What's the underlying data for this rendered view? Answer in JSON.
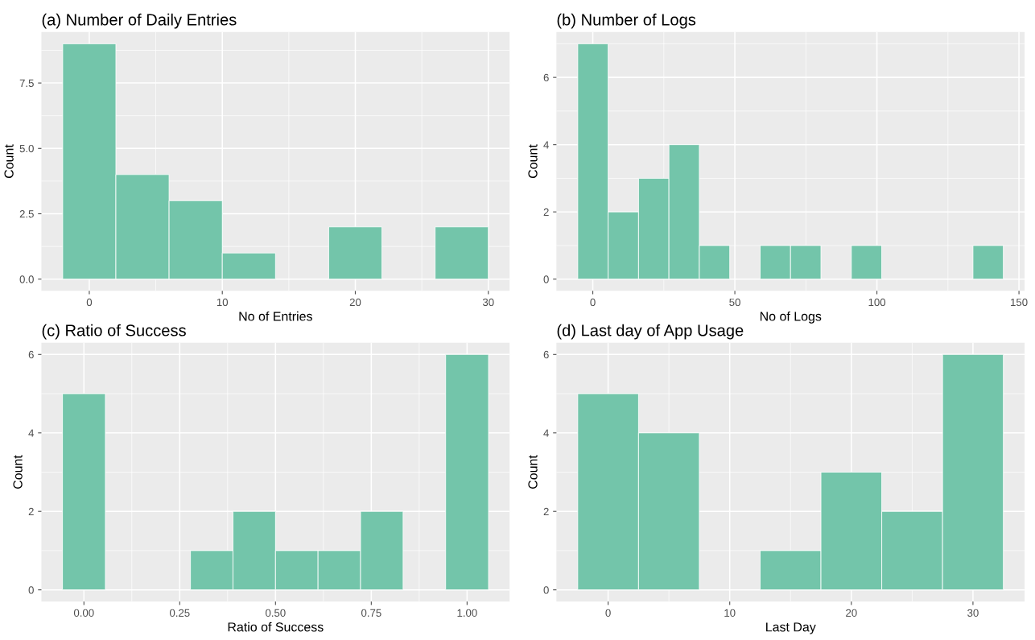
{
  "chart_data": [
    {
      "type": "histogram",
      "title": "(a) Number of Daily Entries",
      "xlabel": "No of Entries",
      "ylabel": "Count",
      "color": "#73c5aa",
      "grid": true,
      "bins": [
        -2,
        2,
        6,
        10,
        14,
        18,
        22,
        26,
        30
      ],
      "values": [
        9,
        4,
        3,
        1,
        0,
        2,
        0,
        2
      ],
      "xlim": [
        -3.6,
        31.6
      ],
      "xticks": [
        0,
        10,
        20,
        30
      ],
      "ylim": [
        -0.45,
        9.45
      ],
      "yticks": [
        {
          "value": 0,
          "label": "0.0"
        },
        {
          "value": 2.5,
          "label": "2.5"
        },
        {
          "value": 5,
          "label": "5.0"
        },
        {
          "value": 7.5,
          "label": "7.5"
        }
      ]
    },
    {
      "type": "histogram",
      "title": "(b) Number of Logs",
      "xlabel": "No of Logs",
      "ylabel": "Count",
      "color": "#73c5aa",
      "grid": true,
      "bins": [
        -5.3,
        5.4,
        16.1,
        26.8,
        37.5,
        48.2,
        58.9,
        69.6,
        80.3,
        91.0,
        101.7,
        112.4,
        123.1,
        133.8,
        144.5
      ],
      "values": [
        7,
        2,
        3,
        4,
        1,
        0,
        1,
        1,
        0,
        1,
        0,
        0,
        0,
        1
      ],
      "xlim": [
        -12.8,
        152.0
      ],
      "xticks": [
        0,
        50,
        100,
        150
      ],
      "ylim": [
        -0.35,
        7.35
      ],
      "yticks": [
        0,
        2,
        4,
        6
      ]
    },
    {
      "type": "histogram",
      "title": "(c) Ratio of Success",
      "xlabel": "Ratio of Success",
      "ylabel": "Count",
      "color": "#73c5aa",
      "grid": true,
      "bins": [
        -0.056,
        0.056,
        0.167,
        0.278,
        0.389,
        0.5,
        0.611,
        0.722,
        0.833,
        0.944,
        1.056
      ],
      "values": [
        5,
        0,
        0,
        1,
        2,
        1,
        1,
        2,
        0,
        6
      ],
      "xlim": [
        -0.111,
        1.111
      ],
      "xticks": [
        {
          "value": 0,
          "label": "0.00"
        },
        {
          "value": 0.25,
          "label": "0.25"
        },
        {
          "value": 0.5,
          "label": "0.50"
        },
        {
          "value": 0.75,
          "label": "0.75"
        },
        {
          "value": 1,
          "label": "1.00"
        }
      ],
      "ylim": [
        -0.3,
        6.3
      ],
      "yticks": [
        0,
        2,
        4,
        6
      ]
    },
    {
      "type": "histogram",
      "title": "(d) Last day of App Usage",
      "xlabel": "Last Day",
      "ylabel": "Count",
      "color": "#73c5aa",
      "grid": true,
      "bins": [
        -2.5,
        2.5,
        7.5,
        12.5,
        17.5,
        22.5,
        27.5,
        32.5
      ],
      "values": [
        5,
        4,
        0,
        1,
        3,
        2,
        6
      ],
      "xlim": [
        -4.25,
        34.25
      ],
      "xticks": [
        0,
        10,
        20,
        30
      ],
      "ylim": [
        -0.3,
        6.3
      ],
      "yticks": [
        0,
        2,
        4,
        6
      ]
    }
  ]
}
